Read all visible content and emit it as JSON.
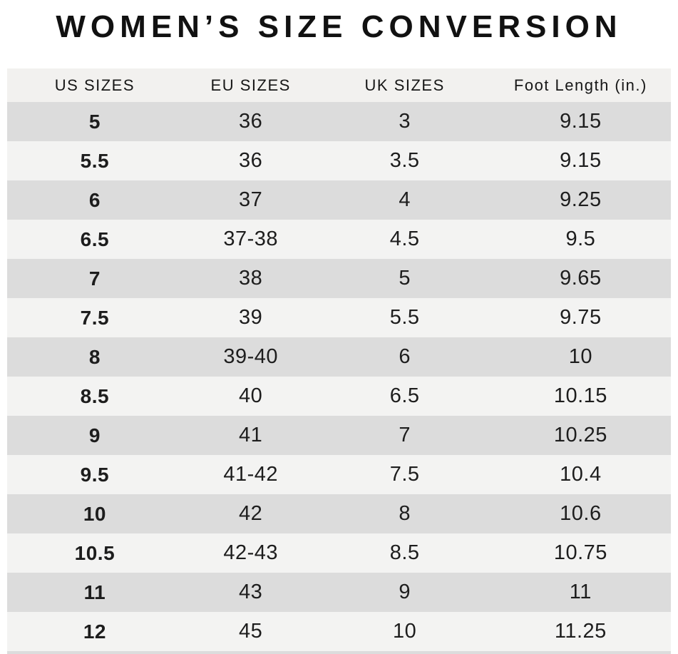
{
  "title": "WOMEN’S SIZE CONVERSION",
  "chart_data": {
    "type": "table",
    "title": "WOMEN’S SIZE CONVERSION",
    "columns": [
      "US SIZES",
      "EU SIZES",
      "UK SIZES",
      "Foot Length (in.)"
    ],
    "rows": [
      [
        "5",
        "36",
        "3",
        "9.15"
      ],
      [
        "5.5",
        "36",
        "3.5",
        "9.15"
      ],
      [
        "6",
        "37",
        "4",
        "9.25"
      ],
      [
        "6.5",
        "37-38",
        "4.5",
        "9.5"
      ],
      [
        "7",
        "38",
        "5",
        "9.65"
      ],
      [
        "7.5",
        "39",
        "5.5",
        "9.75"
      ],
      [
        "8",
        "39-40",
        "6",
        "10"
      ],
      [
        "8.5",
        "40",
        "6.5",
        "10.15"
      ],
      [
        "9",
        "41",
        "7",
        "10.25"
      ],
      [
        "9.5",
        "41-42",
        "7.5",
        "10.4"
      ],
      [
        "10",
        "42",
        "8",
        "10.6"
      ],
      [
        "10.5",
        "42-43",
        "8.5",
        "10.75"
      ],
      [
        "11",
        "43",
        "9",
        "11"
      ],
      [
        "12",
        "45",
        "10",
        "11.25"
      ]
    ],
    "layout_hints": {
      "row_striping": "first data row dark, alternating",
      "us_sizes_column_bold": true,
      "grid_lines": "none"
    }
  },
  "colors": {
    "background": "#ffffff",
    "title_text": "#111111",
    "header_bg": "#f2f1ef",
    "row_dark": "#dcdcdc",
    "row_light": "#f3f3f2",
    "text": "#1d1d1d"
  }
}
